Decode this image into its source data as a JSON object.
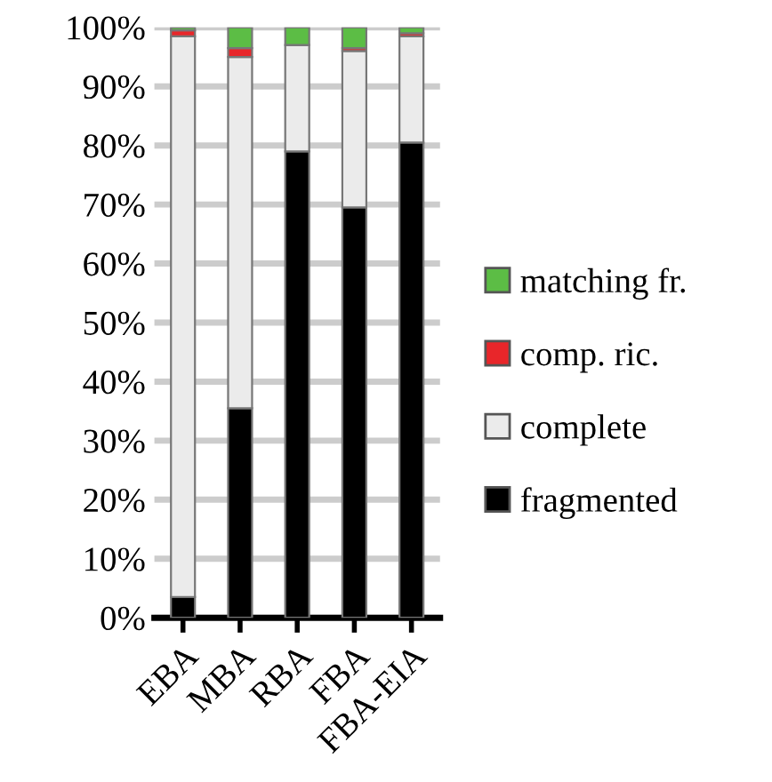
{
  "chart_data": {
    "type": "bar",
    "stacked": true,
    "categories": [
      "EBA",
      "MBA",
      "RBA",
      "FBA",
      "FBA-EIA"
    ],
    "series": [
      {
        "name": "fragmented",
        "color": "#000000",
        "values": [
          3.5,
          35.5,
          79,
          69.5,
          80.5
        ]
      },
      {
        "name": "complete",
        "color": "#ebebeb",
        "values": [
          95,
          59.5,
          18,
          26.5,
          18
        ]
      },
      {
        "name": "comp. ric.",
        "color": "#e8262a",
        "values": [
          1,
          1.5,
          0,
          0.5,
          0.5
        ]
      },
      {
        "name": "matching fr.",
        "color": "#5cbd45",
        "values": [
          0.5,
          3.5,
          3,
          3.5,
          1
        ]
      }
    ],
    "ylim": [
      0,
      100
    ],
    "yticks": [
      {
        "value": 0,
        "label": "0%"
      },
      {
        "value": 10,
        "label": "10%"
      },
      {
        "value": 20,
        "label": "20%"
      },
      {
        "value": 30,
        "label": "30%"
      },
      {
        "value": 40,
        "label": "40%"
      },
      {
        "value": 50,
        "label": "50%"
      },
      {
        "value": 60,
        "label": "60%"
      },
      {
        "value": 70,
        "label": "70%"
      },
      {
        "value": 80,
        "label": "80%"
      },
      {
        "value": 90,
        "label": "90%"
      },
      {
        "value": 100,
        "label": "100%"
      }
    ],
    "grid": "y",
    "legend": "right"
  }
}
